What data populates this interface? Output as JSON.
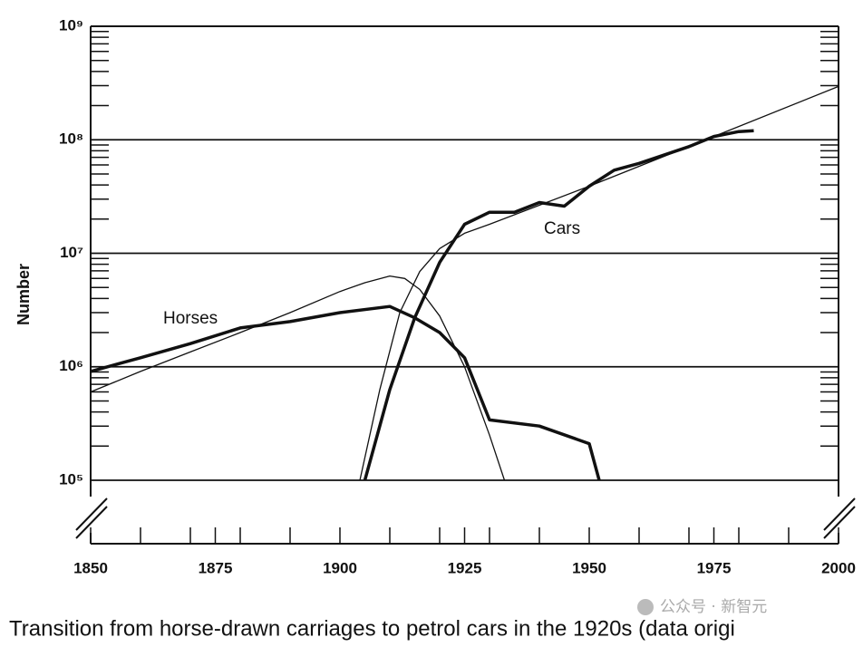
{
  "chart_data": {
    "type": "line",
    "y_label": "Number",
    "log_scale_y": true,
    "xlim": [
      1850,
      2000
    ],
    "xticks": [
      1850,
      1875,
      1900,
      1925,
      1950,
      1975,
      2000
    ],
    "xminor_ticks": [
      1860,
      1870,
      1880,
      1890,
      1910,
      1920,
      1930,
      1940,
      1960,
      1970,
      1980,
      1990
    ],
    "ylim": [
      100000,
      1000000000
    ],
    "yticks": [
      {
        "value": 100000,
        "label": "10⁵"
      },
      {
        "value": 1000000,
        "label": "10⁶"
      },
      {
        "value": 10000000,
        "label": "10⁷"
      },
      {
        "value": 100000000,
        "label": "10⁸"
      },
      {
        "value": 1000000000,
        "label": "10⁹"
      }
    ],
    "yminor_ticks": [
      200000,
      300000,
      400000,
      500000,
      600000,
      700000,
      800000,
      900000,
      2000000,
      3000000,
      4000000,
      5000000,
      6000000,
      7000000,
      8000000,
      9000000,
      20000000,
      30000000,
      40000000,
      50000000,
      60000000,
      70000000,
      80000000,
      90000000,
      200000000,
      300000000,
      400000000,
      500000000,
      600000000,
      700000000,
      800000000,
      900000000
    ],
    "grid": true,
    "series": [
      {
        "name": "Horses",
        "color": "#111111",
        "width": 3.5,
        "x": [
          1850,
          1860,
          1870,
          1880,
          1890,
          1900,
          1910,
          1915,
          1920,
          1925,
          1930,
          1940,
          1950,
          1952
        ],
        "values": [
          910000,
          1200000,
          1600000,
          2200000,
          2500000,
          3000000,
          3400000,
          2700000,
          2000000,
          1200000,
          340000,
          300000,
          210000,
          100000
        ]
      },
      {
        "name": "Cars",
        "color": "#111111",
        "width": 3.5,
        "x": [
          1905,
          1910,
          1915,
          1920,
          1925,
          1930,
          1935,
          1940,
          1945,
          1950,
          1955,
          1960,
          1970,
          1975,
          1980,
          1983
        ],
        "values": [
          100000,
          630000,
          2700000,
          8300000,
          18000000,
          23000000,
          23000000,
          28000000,
          26000000,
          39000000,
          54000000,
          62000000,
          87000000,
          107000000,
          118000000,
          120000000
        ]
      },
      {
        "color": "#111111",
        "width": 1.3,
        "x": [
          1850,
          1860,
          1870,
          1880,
          1890,
          1900,
          1905,
          1910,
          1913,
          1916,
          1920,
          1925,
          1930,
          1933
        ],
        "values": [
          600000,
          910000,
          1350000,
          2000000,
          3000000,
          4600000,
          5500000,
          6300000,
          6000000,
          4800000,
          2800000,
          1000000,
          250000,
          100000
        ]
      },
      {
        "color": "#111111",
        "width": 1.3,
        "x": [
          1904,
          1908,
          1912,
          1916,
          1920,
          1925,
          1930,
          1950,
          1975,
          2000
        ],
        "values": [
          100000,
          630000,
          3000000,
          6900000,
          11000000,
          15000000,
          18000000,
          39000000,
          107000000,
          295000000
        ]
      }
    ]
  },
  "caption": "Transition from horse-drawn carriages to petrol cars in the 1920s (data origi",
  "watermark": "公众号 · 新智元"
}
